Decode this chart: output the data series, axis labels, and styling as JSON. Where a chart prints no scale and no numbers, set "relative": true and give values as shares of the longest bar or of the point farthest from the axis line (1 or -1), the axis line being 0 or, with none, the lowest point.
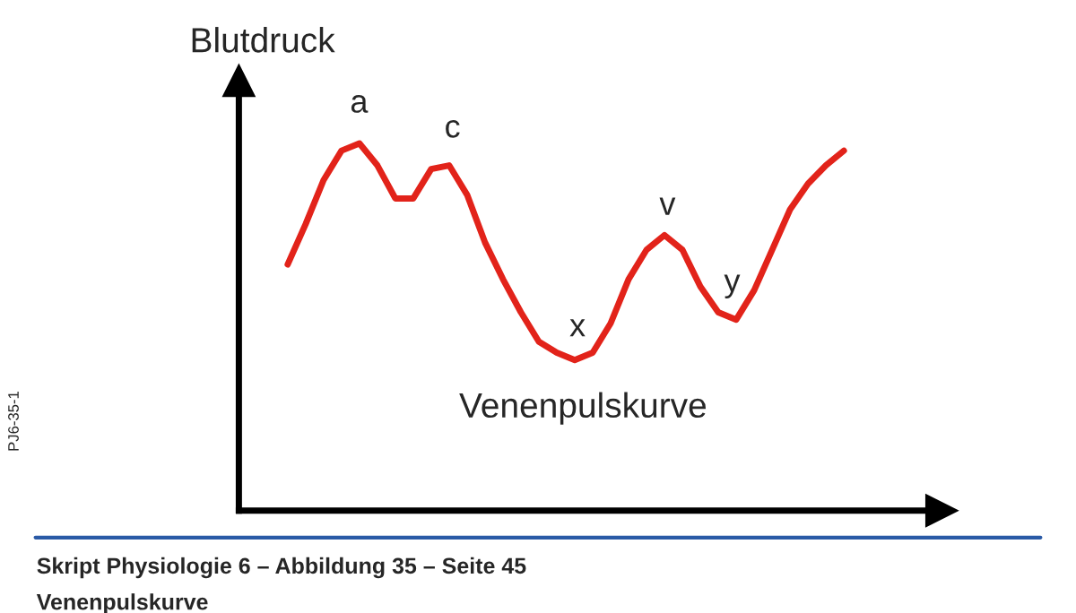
{
  "chart_data": {
    "type": "line",
    "relative": true,
    "ylabel": "Blutdruck",
    "legend": false,
    "marker": "none",
    "line_style": "solid",
    "categories": [
      null,
      null,
      null,
      null,
      null,
      null,
      null,
      null,
      null,
      null,
      null,
      null,
      null,
      null,
      null,
      null,
      null,
      null,
      null,
      null,
      null,
      null,
      null,
      null,
      null,
      null,
      null,
      null,
      null,
      null,
      null,
      null
    ],
    "series": [
      {
        "color": "#e2231a",
        "values": [
          0.67,
          0.78,
          0.9,
          0.98,
          1.0,
          0.94,
          0.85,
          0.85,
          0.93,
          0.94,
          0.86,
          0.73,
          0.63,
          0.54,
          0.46,
          0.43,
          0.41,
          0.43,
          0.51,
          0.63,
          0.71,
          0.75,
          0.71,
          0.61,
          0.54,
          0.52,
          0.6,
          0.71,
          0.82,
          0.89,
          0.94,
          0.98
        ]
      }
    ],
    "annotations": [
      "a",
      "c",
      "x",
      "v",
      "y",
      "Venenpulskurve",
      "PJ6-35-1",
      "Skript Physiologie 6 – Abbildung 35 – Seite 45",
      "Venenpulskurve"
    ]
  }
}
